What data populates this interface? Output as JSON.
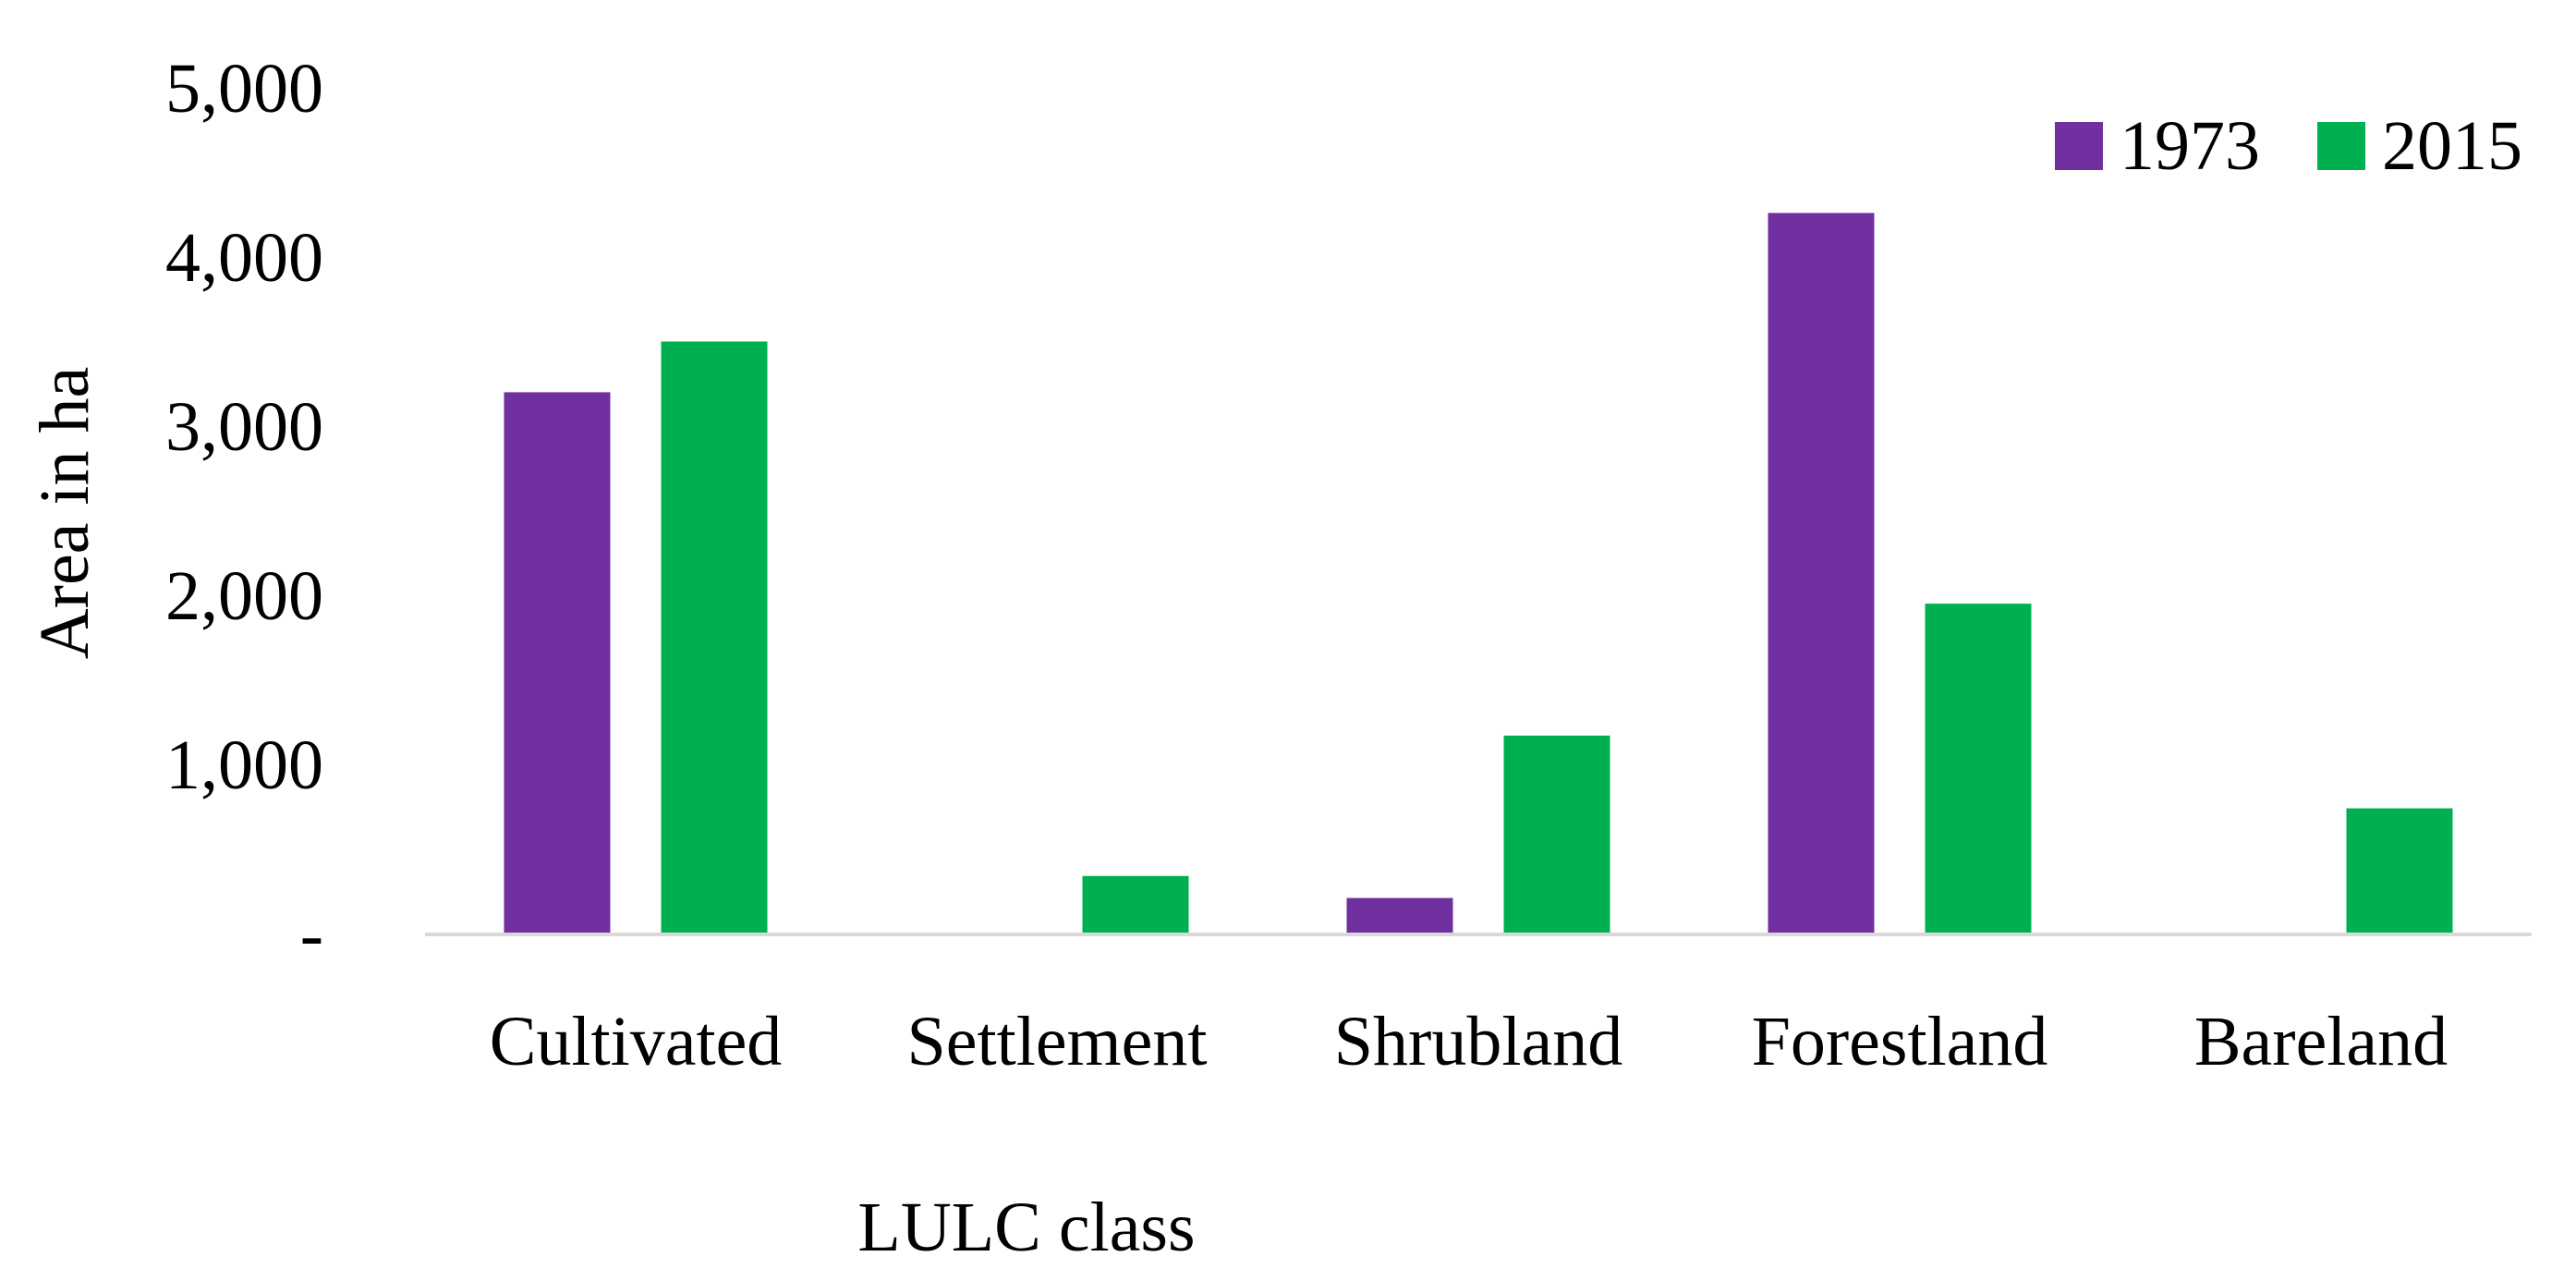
{
  "chart_data": {
    "type": "bar",
    "title": "",
    "xlabel": "LULC class",
    "ylabel": "Area in ha",
    "categories": [
      "Cultivated",
      "Settlement",
      "Shrubland",
      "Forestland",
      "Bareland"
    ],
    "series": [
      {
        "name": "1973",
        "color": "#7030a0",
        "values": [
          3200,
          0,
          210,
          4260,
          0
        ]
      },
      {
        "name": "2015",
        "color": "#00b050",
        "values": [
          3500,
          340,
          1170,
          1950,
          740
        ]
      }
    ],
    "ylim": [
      0,
      5000
    ],
    "yticks": [
      {
        "value": 0,
        "label": "-"
      },
      {
        "value": 1000,
        "label": "1,000"
      },
      {
        "value": 2000,
        "label": "2,000"
      },
      {
        "value": 3000,
        "label": "3,000"
      },
      {
        "value": 4000,
        "label": "4,000"
      },
      {
        "value": 5000,
        "label": "5,000"
      }
    ],
    "grid": false,
    "legend_position": "top-right",
    "axis_line_color": "#d9d9d9"
  }
}
